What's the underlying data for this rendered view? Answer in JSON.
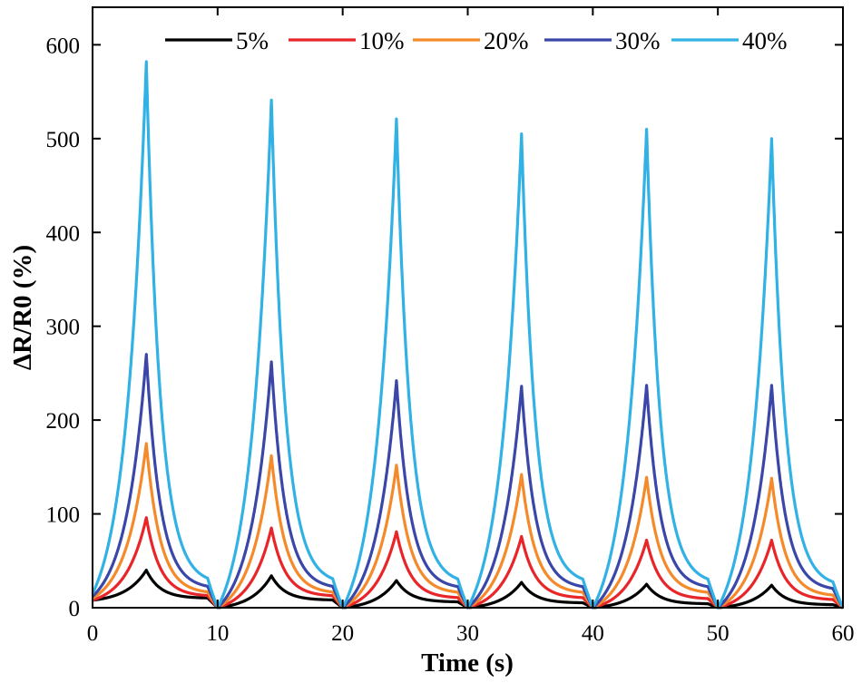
{
  "chart_data": {
    "type": "line",
    "title": "",
    "xlabel": "Time (s)",
    "ylabel": "ΔR/R0 (%)",
    "xlim": [
      0,
      60
    ],
    "ylim": [
      0,
      640
    ],
    "xticks": [
      0,
      10,
      20,
      30,
      40,
      50,
      60
    ],
    "yticks": [
      0,
      100,
      200,
      300,
      400,
      500,
      600
    ],
    "grid": false,
    "legend_position": "top",
    "cycle_period": 10,
    "peak_time_in_cycle": 4.3,
    "series": [
      {
        "name": "5%",
        "color": "#000000",
        "start": 8,
        "peaks": [
          40,
          34,
          29,
          27,
          25,
          24
        ],
        "valley_before_drop": [
          10,
          8,
          6,
          5,
          4,
          3
        ]
      },
      {
        "name": "10%",
        "color": "#e8262a",
        "start": 8,
        "peaks": [
          96,
          85,
          81,
          76,
          72,
          72
        ],
        "valley_before_drop": [
          12,
          12,
          10,
          10,
          9,
          8
        ]
      },
      {
        "name": "20%",
        "color": "#f58a2a",
        "start": 10,
        "peaks": [
          175,
          162,
          152,
          142,
          139,
          138
        ],
        "valley_before_drop": [
          15,
          15,
          15,
          15,
          15,
          12
        ]
      },
      {
        "name": "30%",
        "color": "#3b47a8",
        "start": 12,
        "peaks": [
          270,
          262,
          242,
          236,
          237,
          237
        ],
        "valley_before_drop": [
          20,
          20,
          20,
          20,
          20,
          18
        ]
      },
      {
        "name": "40%",
        "color": "#31b1e4",
        "start": 15,
        "peaks": [
          582,
          541,
          521,
          505,
          510,
          500
        ],
        "valley_before_drop": [
          25,
          25,
          25,
          25,
          25,
          22
        ]
      }
    ]
  }
}
